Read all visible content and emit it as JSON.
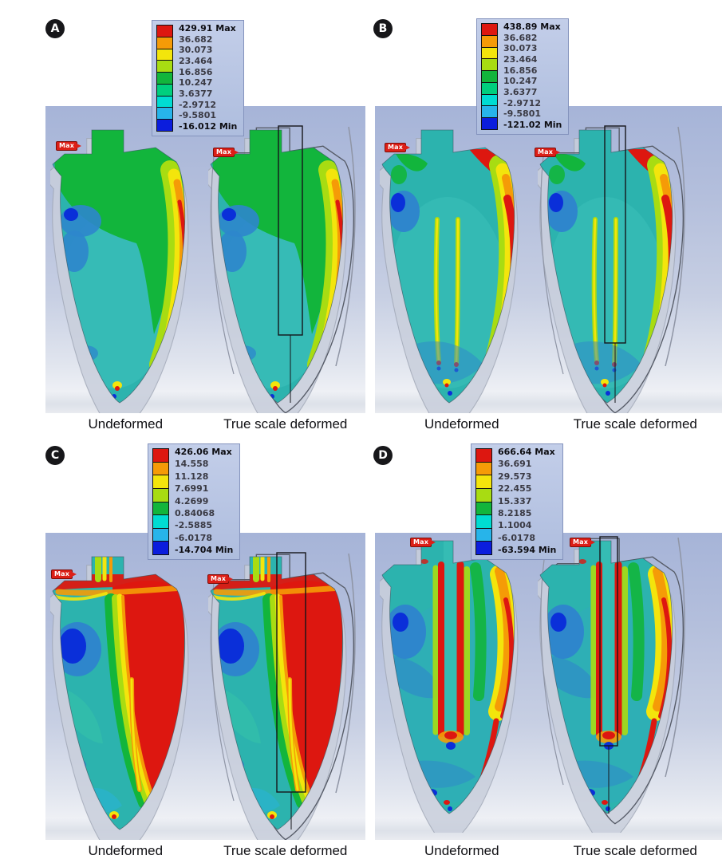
{
  "figure": {
    "colors": {
      "red": "#dd1710",
      "orange": "#f59b07",
      "yellow": "#f3e50c",
      "lime": "#a8dc12",
      "green": "#12b53c",
      "seagreen": "#00cf7e",
      "cyan": "#00dcd2",
      "skyblue": "#27b4ea",
      "blue": "#0b1ddd",
      "teal_base": "#2cb3ae",
      "teal_light": "#49cfcf",
      "blue_blob": "#2e86cc",
      "dark_blue": "#0a2fd9",
      "ghost": "#c9cfdc",
      "legend_bg": "#b7c3e2",
      "plot_bg_top": "#a6b4d8",
      "plot_bg_bottom": "#e9ebf0"
    },
    "panels": [
      {
        "label": "A",
        "legend_entries": [
          "429.91 Max",
          "36.682",
          "30.073",
          "23.464",
          "16.856",
          "10.247",
          "3.6377",
          "-2.9712",
          "-9.5801",
          "-16.012 Min"
        ],
        "max_tag": "Max",
        "caption_left": "Undeformed",
        "caption_right": "True scale deformed"
      },
      {
        "label": "B",
        "legend_entries": [
          "438.89 Max",
          "36.682",
          "30.073",
          "23.464",
          "16.856",
          "10.247",
          "3.6377",
          "-2.9712",
          "-9.5801",
          "-121.02 Min"
        ],
        "max_tag": "Max",
        "caption_left": "Undeformed",
        "caption_right": "True scale deformed"
      },
      {
        "label": "C",
        "legend_entries": [
          "426.06 Max",
          "14.558",
          "11.128",
          "7.6991",
          "4.2699",
          "0.84068",
          "-2.5885",
          "-6.0178",
          "-14.704 Min"
        ],
        "max_tag": "Max",
        "caption_left": "Undeformed",
        "caption_right": "True scale deformed"
      },
      {
        "label": "D",
        "legend_entries": [
          "666.64 Max",
          "36.691",
          "29.573",
          "22.455",
          "15.337",
          "8.2185",
          "1.1004",
          "-6.0178",
          "-63.594 Min"
        ],
        "max_tag": "Max",
        "caption_left": "Undeformed",
        "caption_right": "True scale deformed"
      }
    ]
  },
  "chart_data": [
    {
      "type": "heatmap",
      "panel": "A",
      "views": [
        "Undeformed",
        "True scale deformed"
      ],
      "legend_labels": [
        "429.91 Max",
        "36.682",
        "30.073",
        "23.464",
        "16.856",
        "10.247",
        "3.6377",
        "-2.9712",
        "-9.5801",
        "-16.012 Min"
      ],
      "legend_values": [
        429.91,
        36.682,
        30.073,
        23.464,
        16.856,
        10.247,
        3.6377,
        -2.9712,
        -9.5801,
        -16.012
      ],
      "max": 429.91,
      "min": -16.012,
      "color_cells": 9
    },
    {
      "type": "heatmap",
      "panel": "B",
      "views": [
        "Undeformed",
        "True scale deformed"
      ],
      "legend_labels": [
        "438.89 Max",
        "36.682",
        "30.073",
        "23.464",
        "16.856",
        "10.247",
        "3.6377",
        "-2.9712",
        "-9.5801",
        "-121.02 Min"
      ],
      "legend_values": [
        438.89,
        36.682,
        30.073,
        23.464,
        16.856,
        10.247,
        3.6377,
        -2.9712,
        -9.5801,
        -121.02
      ],
      "max": 438.89,
      "min": -121.02,
      "color_cells": 9
    },
    {
      "type": "heatmap",
      "panel": "C",
      "views": [
        "Undeformed",
        "True scale deformed"
      ],
      "legend_labels": [
        "426.06 Max",
        "14.558",
        "11.128",
        "7.6991",
        "4.2699",
        "0.84068",
        "-2.5885",
        "-6.0178",
        "-14.704 Min"
      ],
      "legend_values": [
        426.06,
        14.558,
        11.128,
        7.6991,
        4.2699,
        0.84068,
        -2.5885,
        -6.0178,
        -14.704
      ],
      "max": 426.06,
      "min": -14.704,
      "color_cells": 8
    },
    {
      "type": "heatmap",
      "panel": "D",
      "views": [
        "Undeformed",
        "True scale deformed"
      ],
      "legend_labels": [
        "666.64 Max",
        "36.691",
        "29.573",
        "22.455",
        "15.337",
        "8.2185",
        "1.1004",
        "-6.0178",
        "-63.594 Min"
      ],
      "legend_values": [
        666.64,
        36.691,
        29.573,
        22.455,
        15.337,
        8.2185,
        1.1004,
        -6.0178,
        -63.594
      ],
      "max": 666.64,
      "min": -63.594,
      "color_cells": 8
    }
  ]
}
